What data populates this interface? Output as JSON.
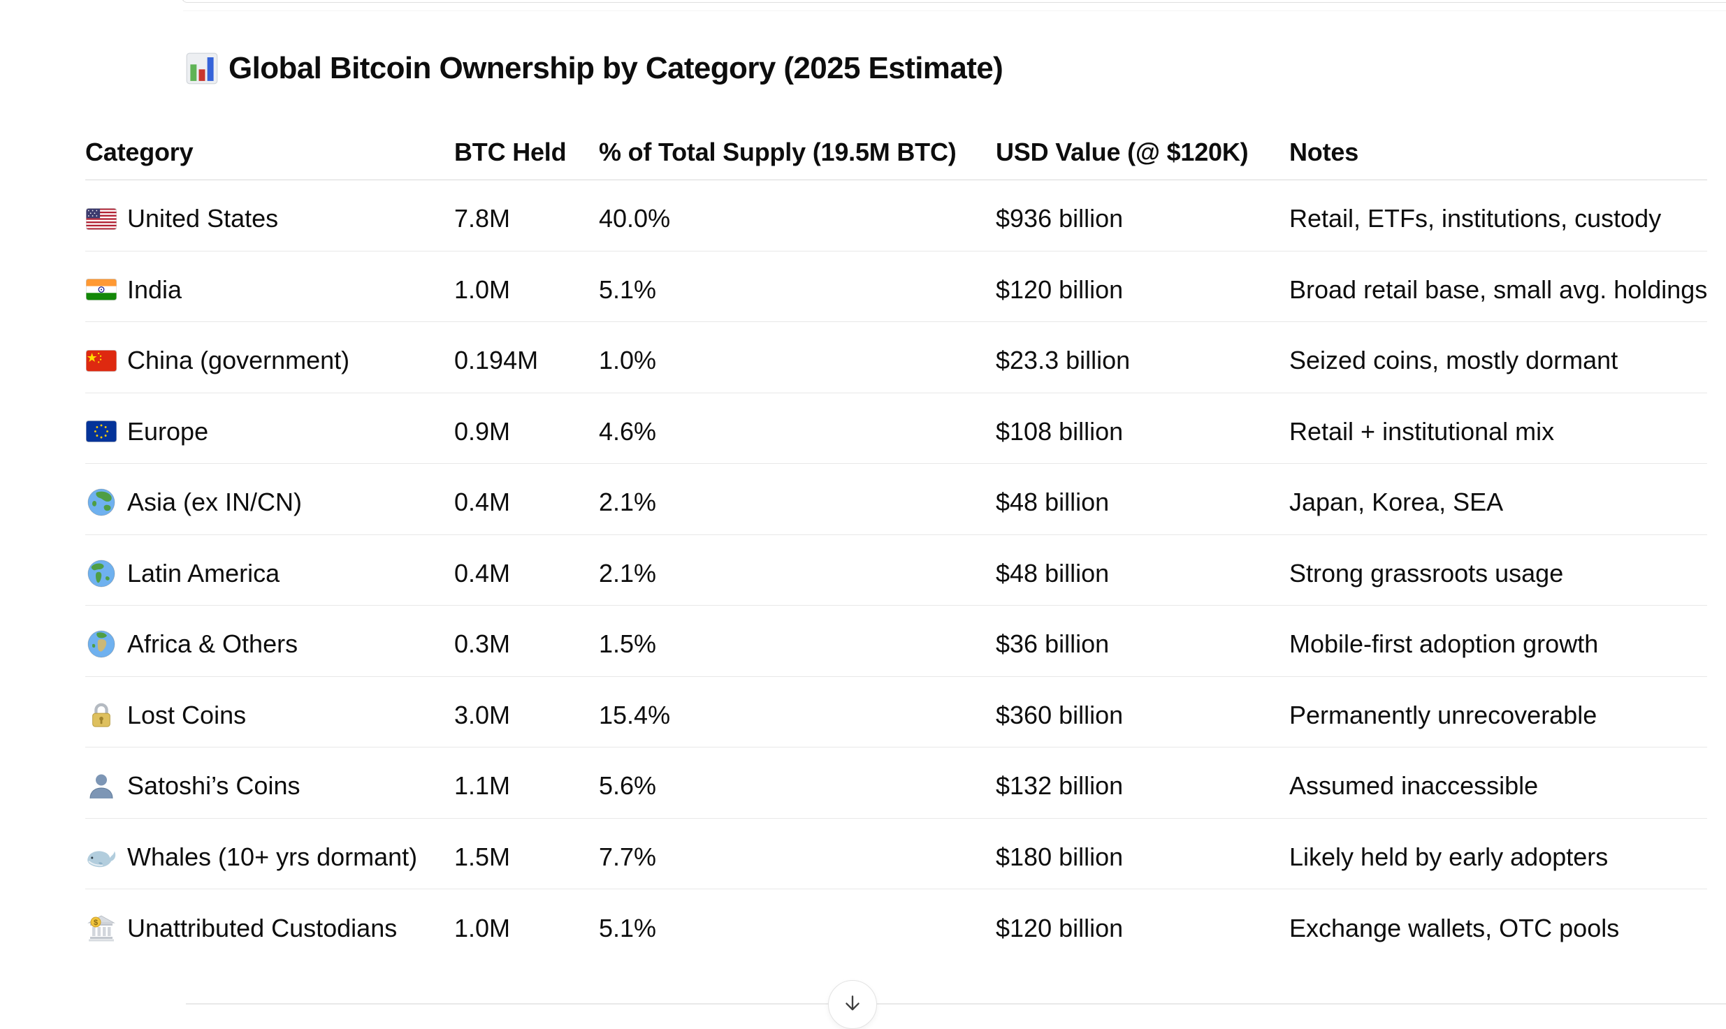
{
  "page": {
    "title": {
      "icon": "bar-chart",
      "text": "Global Bitcoin Ownership by Category (2025 Estimate)"
    }
  },
  "table": {
    "columns": [
      "Category",
      "BTC Held",
      "% of Total Supply (19.5M BTC)",
      "USD Value (@ $120K)",
      "Notes"
    ],
    "rows": [
      {
        "icon": "us-flag",
        "category": "United States",
        "btc_held": "7.8M",
        "pct_supply": "40.0%",
        "usd_value": "$936 billion",
        "notes": "Retail, ETFs, institutions, custody"
      },
      {
        "icon": "india-flag",
        "category": "India",
        "btc_held": "1.0M",
        "pct_supply": "5.1%",
        "usd_value": "$120 billion",
        "notes": "Broad retail base, small avg. holdings"
      },
      {
        "icon": "china-flag",
        "category": "China (government)",
        "btc_held": "0.194M",
        "pct_supply": "1.0%",
        "usd_value": "$23.3 billion",
        "notes": "Seized coins, mostly dormant"
      },
      {
        "icon": "eu-flag",
        "category": "Europe",
        "btc_held": "0.9M",
        "pct_supply": "4.6%",
        "usd_value": "$108 billion",
        "notes": "Retail + institutional mix"
      },
      {
        "icon": "globe-asia",
        "category": "Asia (ex IN/CN)",
        "btc_held": "0.4M",
        "pct_supply": "2.1%",
        "usd_value": "$48 billion",
        "notes": "Japan, Korea, SEA"
      },
      {
        "icon": "globe-americas",
        "category": "Latin America",
        "btc_held": "0.4M",
        "pct_supply": "2.1%",
        "usd_value": "$48 billion",
        "notes": "Strong grassroots usage"
      },
      {
        "icon": "globe-europe-africa",
        "category": "Africa & Others",
        "btc_held": "0.3M",
        "pct_supply": "1.5%",
        "usd_value": "$36 billion",
        "notes": "Mobile-first adoption growth"
      },
      {
        "icon": "lock",
        "category": "Lost Coins",
        "btc_held": "3.0M",
        "pct_supply": "15.4%",
        "usd_value": "$360 billion",
        "notes": "Permanently unrecoverable"
      },
      {
        "icon": "bust-silhouette",
        "category": "Satoshi’s Coins",
        "btc_held": "1.1M",
        "pct_supply": "5.6%",
        "usd_value": "$132 billion",
        "notes": "Assumed inaccessible"
      },
      {
        "icon": "whale",
        "category": "Whales (10+ yrs dormant)",
        "btc_held": "1.5M",
        "pct_supply": "7.7%",
        "usd_value": "$180 billion",
        "notes": "Likely held by early adopters"
      },
      {
        "icon": "bank",
        "category": "Unattributed Custodians",
        "btc_held": "1.0M",
        "pct_supply": "5.1%",
        "usd_value": "$120 billion",
        "notes": "Exchange wallets, OTC pools"
      }
    ]
  },
  "scroll_button": {
    "icon": "down-arrow"
  },
  "colors": {
    "text": "#0d0d0d",
    "header_border": "#d9d9d9",
    "row_border": "#e8e8e8",
    "hairline": "#e9e9e9",
    "button_border": "#e3e3e3",
    "arrow": "#3f3f3f"
  }
}
